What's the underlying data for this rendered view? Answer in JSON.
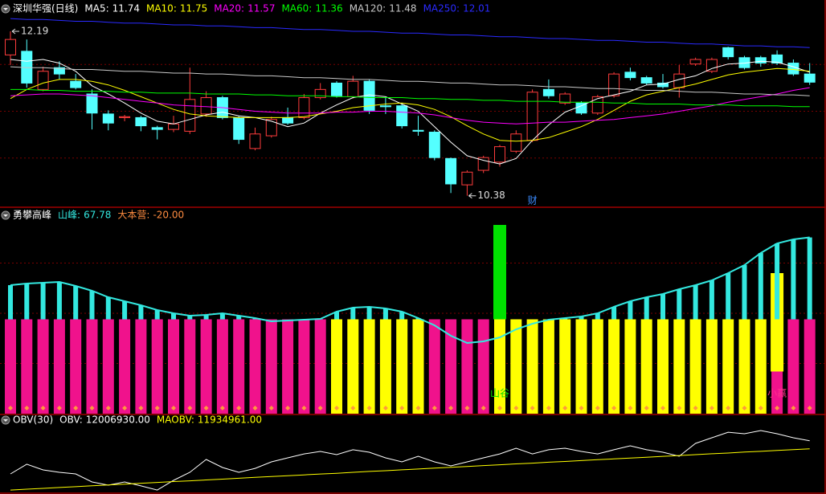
{
  "chart_data": [
    {
      "type": "candlestick",
      "title": "深圳华强(日线)",
      "up_color": "#ff3c3c",
      "down_color": "#54ffff",
      "ylim": [
        10.28,
        12.34
      ],
      "grid": true,
      "open": [
        11.93,
        11.97,
        11.55,
        11.79,
        11.64,
        11.5,
        11.28,
        11.24,
        11.24,
        11.13,
        11.11,
        11.09,
        11.28,
        11.46,
        11.24,
        10.9,
        11.04,
        11.24,
        11.24,
        11.46,
        11.62,
        11.47,
        11.64,
        11.37,
        11.37,
        11.1,
        11.08,
        10.79,
        10.5,
        10.66,
        10.75,
        10.87,
        10.99,
        11.55,
        11.4,
        11.4,
        11.29,
        11.48,
        11.74,
        11.68,
        11.62,
        11.57,
        11.83,
        11.75,
        12.01,
        11.9,
        11.9,
        11.93,
        11.84,
        11.72
      ],
      "high": [
        12.19,
        12.1,
        11.8,
        11.86,
        11.72,
        11.55,
        11.32,
        11.27,
        11.26,
        11.15,
        11.26,
        11.79,
        11.53,
        11.48,
        11.26,
        11.13,
        11.25,
        11.35,
        11.5,
        11.62,
        11.64,
        11.7,
        11.66,
        11.46,
        11.4,
        11.26,
        11.1,
        10.8,
        10.66,
        10.82,
        10.94,
        11.1,
        11.55,
        11.66,
        11.52,
        11.42,
        11.49,
        11.74,
        11.79,
        11.7,
        11.72,
        11.82,
        11.9,
        11.9,
        12.02,
        11.92,
        11.92,
        11.98,
        11.88,
        11.84
      ],
      "low": [
        11.82,
        11.57,
        11.53,
        11.66,
        11.55,
        11.11,
        11.1,
        11.2,
        11.09,
        11.0,
        11.08,
        11.06,
        11.25,
        11.22,
        10.95,
        10.88,
        11.02,
        11.16,
        11.22,
        11.44,
        11.46,
        11.45,
        11.28,
        11.28,
        11.12,
        11.04,
        10.77,
        10.41,
        10.38,
        10.63,
        10.7,
        10.85,
        10.97,
        11.45,
        11.38,
        11.27,
        11.27,
        11.46,
        11.65,
        11.6,
        11.56,
        11.46,
        11.81,
        11.73,
        11.88,
        11.77,
        11.8,
        11.82,
        11.7,
        11.6
      ],
      "close": [
        12.1,
        11.62,
        11.75,
        11.72,
        11.57,
        11.29,
        11.18,
        11.25,
        11.15,
        11.11,
        11.17,
        11.44,
        11.46,
        11.24,
        11.0,
        11.06,
        11.22,
        11.18,
        11.46,
        11.55,
        11.48,
        11.64,
        11.32,
        11.36,
        11.15,
        11.09,
        10.8,
        10.51,
        10.64,
        10.8,
        10.92,
        11.06,
        11.52,
        11.48,
        11.5,
        11.29,
        11.47,
        11.72,
        11.68,
        11.62,
        11.58,
        11.72,
        11.88,
        11.88,
        11.91,
        11.79,
        11.84,
        11.84,
        11.72,
        11.63
      ],
      "series": [
        {
          "name": "MA5:",
          "color": "#ffffff",
          "values": [
            11.88,
            11.86,
            11.88,
            11.84,
            11.75,
            11.59,
            11.5,
            11.4,
            11.29,
            11.2,
            11.17,
            11.22,
            11.27,
            11.3,
            11.26,
            11.24,
            11.2,
            11.14,
            11.18,
            11.29,
            11.38,
            11.46,
            11.49,
            11.47,
            11.39,
            11.31,
            11.14,
            10.97,
            10.82,
            10.77,
            10.73,
            10.79,
            10.99,
            11.16,
            11.3,
            11.37,
            11.45,
            11.49,
            11.53,
            11.6,
            11.61,
            11.66,
            11.7,
            11.78,
            11.83,
            11.84,
            11.86,
            11.85,
            11.8,
            11.74
          ]
        },
        {
          "name": "MA10:",
          "color": "#ffff00",
          "values": [
            11.45,
            11.55,
            11.62,
            11.66,
            11.66,
            11.64,
            11.6,
            11.54,
            11.47,
            11.4,
            11.33,
            11.28,
            11.26,
            11.25,
            11.24,
            11.24,
            11.24,
            11.24,
            11.25,
            11.28,
            11.31,
            11.35,
            11.37,
            11.39,
            11.4,
            11.38,
            11.33,
            11.25,
            11.15,
            11.06,
            10.99,
            10.98,
            10.99,
            11.02,
            11.08,
            11.14,
            11.22,
            11.32,
            11.42,
            11.49,
            11.53,
            11.57,
            11.61,
            11.66,
            11.71,
            11.74,
            11.76,
            11.78,
            11.77,
            11.75
          ]
        },
        {
          "name": "MA20:",
          "color": "#ff00ff",
          "values": [
            11.48,
            11.49,
            11.5,
            11.5,
            11.49,
            11.48,
            11.46,
            11.44,
            11.42,
            11.4,
            11.38,
            11.37,
            11.36,
            11.35,
            11.33,
            11.31,
            11.3,
            11.29,
            11.29,
            11.29,
            11.3,
            11.3,
            11.31,
            11.31,
            11.3,
            11.29,
            11.27,
            11.24,
            11.21,
            11.19,
            11.18,
            11.17,
            11.18,
            11.19,
            11.19,
            11.2,
            11.21,
            11.22,
            11.24,
            11.26,
            11.28,
            11.31,
            11.34,
            11.37,
            11.41,
            11.44,
            11.47,
            11.5,
            11.54,
            11.57
          ]
        },
        {
          "name": "MA60:",
          "color": "#00ff00",
          "values": [
            11.55,
            11.55,
            11.54,
            11.54,
            11.53,
            11.53,
            11.53,
            11.52,
            11.52,
            11.51,
            11.51,
            11.51,
            11.5,
            11.5,
            11.5,
            11.49,
            11.49,
            11.48,
            11.48,
            11.48,
            11.47,
            11.47,
            11.46,
            11.46,
            11.46,
            11.45,
            11.45,
            11.44,
            11.44,
            11.43,
            11.43,
            11.42,
            11.42,
            11.42,
            11.41,
            11.41,
            11.41,
            11.4,
            11.4,
            11.39,
            11.39,
            11.39,
            11.38,
            11.38,
            11.38,
            11.37,
            11.37,
            11.37,
            11.36,
            11.36
          ]
        },
        {
          "name": "MA120:",
          "color": "#c8c8c8",
          "values": [
            11.8,
            11.79,
            11.79,
            11.78,
            11.77,
            11.77,
            11.76,
            11.75,
            11.75,
            11.74,
            11.73,
            11.73,
            11.72,
            11.72,
            11.71,
            11.7,
            11.7,
            11.69,
            11.68,
            11.68,
            11.67,
            11.66,
            11.66,
            11.65,
            11.64,
            11.64,
            11.63,
            11.62,
            11.62,
            11.61,
            11.6,
            11.6,
            11.59,
            11.58,
            11.58,
            11.57,
            11.56,
            11.56,
            11.55,
            11.54,
            11.54,
            11.53,
            11.52,
            11.52,
            11.51,
            11.5,
            11.5,
            11.49,
            11.49,
            11.48
          ]
        },
        {
          "name": "MA250:",
          "color": "#2a2aff",
          "values": [
            12.33,
            12.32,
            12.32,
            12.31,
            12.3,
            12.3,
            12.29,
            12.28,
            12.28,
            12.27,
            12.26,
            12.26,
            12.25,
            12.25,
            12.24,
            12.23,
            12.23,
            12.22,
            12.21,
            12.21,
            12.2,
            12.19,
            12.19,
            12.18,
            12.17,
            12.17,
            12.16,
            12.15,
            12.15,
            12.14,
            12.13,
            12.13,
            12.12,
            12.11,
            12.11,
            12.1,
            12.09,
            12.09,
            12.08,
            12.07,
            12.07,
            12.06,
            12.05,
            12.05,
            12.04,
            12.03,
            12.03,
            12.02,
            12.02,
            12.01
          ]
        }
      ],
      "annotations": [
        {
          "text": "财",
          "index": 32,
          "color": "#3b8bff"
        }
      ]
    },
    {
      "type": "bar",
      "title": "勇攀高峰",
      "ylim": [
        -20,
        80
      ],
      "baseline": 27,
      "grid": true,
      "series": [
        {
          "name": "山峰:",
          "color": "#33e8e0",
          "values": [
            44,
            44.8,
            45.2,
            45.6,
            43.6,
            41.2,
            38,
            36,
            34,
            31.6,
            30,
            28.8,
            29.2,
            30,
            28.8,
            27.6,
            26,
            26.4,
            26.8,
            27.2,
            30.8,
            32.8,
            33.2,
            32.4,
            30.8,
            27.6,
            24,
            18.8,
            15.2,
            16,
            18,
            22,
            24.8,
            26.8,
            27.6,
            28.4,
            30,
            33.2,
            36,
            38,
            39.6,
            42,
            44,
            46.4,
            50,
            54,
            60,
            64.8,
            66.8,
            67.78
          ]
        },
        {
          "name": "大本营:",
          "color": "#ff8c40",
          "legend_label": "-20.00",
          "values": [
            -20,
            -20,
            -20,
            -20,
            -20,
            -20,
            -20,
            -20,
            -20,
            -20,
            -20,
            -20,
            -20,
            -20,
            -20,
            -20,
            -20,
            -20,
            -20,
            -20,
            -20,
            -20,
            -20,
            -20,
            -20,
            -20,
            -20,
            -20,
            -20,
            -20,
            -20,
            -20,
            -20,
            -20,
            -20,
            -20,
            -20,
            -20,
            -20,
            -20,
            -20,
            -20,
            -20,
            -20,
            -20,
            -20,
            -20,
            -20,
            -20,
            -20
          ],
          "colors": [
            "#f0128c",
            "#f0128c",
            "#f0128c",
            "#f0128c",
            "#f0128c",
            "#f0128c",
            "#f0128c",
            "#f0128c",
            "#f0128c",
            "#f0128c",
            "#f0128c",
            "#f0128c",
            "#f0128c",
            "#f0128c",
            "#f0128c",
            "#f0128c",
            "#f0128c",
            "#f0128c",
            "#f0128c",
            "#f0128c",
            "#ffff00",
            "#ffff00",
            "#ffff00",
            "#ffff00",
            "#ffff00",
            "#ffff00",
            "#f0128c",
            "#f0128c",
            "#f0128c",
            "#f0128c",
            "#ffff00",
            "#ffff00",
            "#ffff00",
            "#ffff00",
            "#ffff00",
            "#ffff00",
            "#ffff00",
            "#ffff00",
            "#ffff00",
            "#ffff00",
            "#ffff00",
            "#ffff00",
            "#ffff00",
            "#ffff00",
            "#ffff00",
            "#ffff00",
            "#ffff00",
            "#f0128c",
            "#f0128c",
            "#f0128c"
          ]
        }
      ],
      "signals": [
        {
          "label": "山谷",
          "index": 30,
          "from": 27,
          "to": 74,
          "color": "#00e000",
          "label_color": "#00e000"
        },
        {
          "label": "小赢",
          "index": 47,
          "from": 1,
          "to": 50,
          "color": "#ffff00",
          "label_color": "#ff2e8c"
        }
      ]
    },
    {
      "type": "line",
      "title": "OBV(30)",
      "ylim": [
        11550000,
        12200000
      ],
      "series": [
        {
          "name": "OBV:",
          "color": "#ffffff",
          "legend_label": "12006930.00",
          "values": [
            11709000,
            11796000,
            11745000,
            11723000,
            11709000,
            11637000,
            11608000,
            11637000,
            11601000,
            11564000,
            11651000,
            11723000,
            11839000,
            11767000,
            11723000,
            11759000,
            11817000,
            11853000,
            11889000,
            11911000,
            11882000,
            11926000,
            11904000,
            11853000,
            11817000,
            11868000,
            11817000,
            11781000,
            11817000,
            11853000,
            11889000,
            11940000,
            11889000,
            11926000,
            11940000,
            11911000,
            11889000,
            11926000,
            11962000,
            11926000,
            11904000,
            11868000,
            11983000,
            12034000,
            12084000,
            12070000,
            12099000,
            12070000,
            12034000,
            12006930
          ]
        },
        {
          "name": "MAOBV:",
          "color": "#ffff00",
          "legend_label": "11934961.00",
          "values": [
            11564000,
            11572000,
            11579000,
            11587000,
            11594000,
            11602000,
            11609000,
            11617000,
            11625000,
            11632000,
            11640000,
            11647000,
            11655000,
            11662000,
            11670000,
            11678000,
            11685000,
            11693000,
            11700000,
            11708000,
            11715000,
            11723000,
            11731000,
            11738000,
            11746000,
            11753000,
            11761000,
            11768000,
            11776000,
            11784000,
            11791000,
            11799000,
            11806000,
            11814000,
            11821000,
            11829000,
            11837000,
            11844000,
            11852000,
            11859000,
            11867000,
            11874000,
            11882000,
            11890000,
            11897000,
            11905000,
            11912000,
            11920000,
            11927000,
            11934961
          ]
        }
      ]
    }
  ]
}
